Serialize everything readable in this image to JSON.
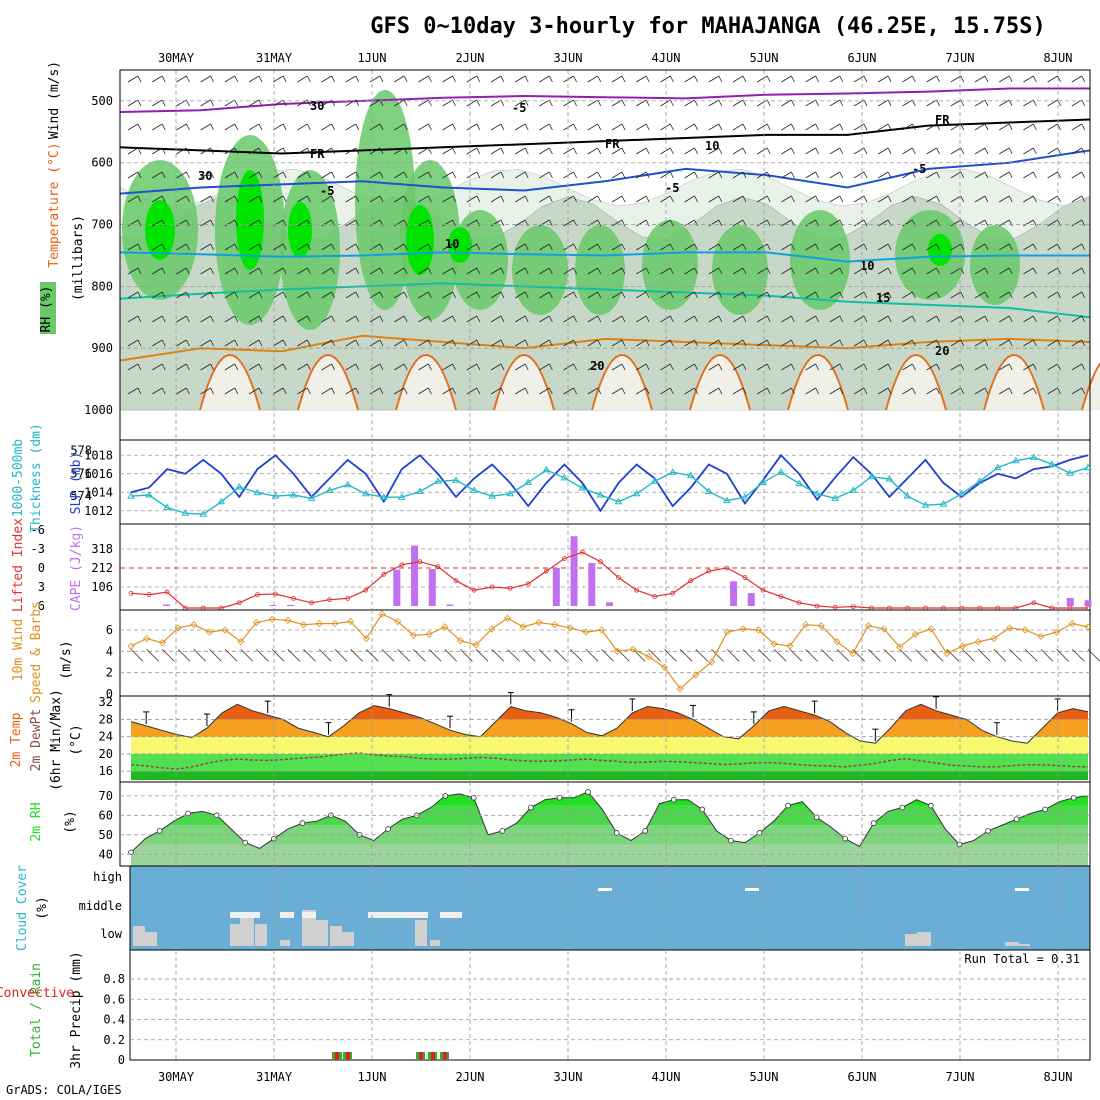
{
  "title": "GFS 0~10day 3-hourly for MAHAJANGA (46.25E, 15.75S)",
  "footer": "GrADS: COLA/IGES",
  "colors": {
    "grid": "#9a9a9a",
    "rh_light": "#e8f2e8",
    "rh_mid": "#c8d8c8",
    "rh_dark": "#67c967",
    "rh_bright": "#00e400",
    "slp": "#1f3fd0",
    "thickness": "#22b8c8",
    "lifted": "#e03030",
    "cape": "#c070f0",
    "wind": "#e09020",
    "temp_hot": "#e86010",
    "temp_orange": "#f5a020",
    "temp_yellow": "#f8f870",
    "temp_green": "#50e050",
    "temp_dkgreen": "#20b820",
    "rh2m": "#20e020",
    "cloud_bg": "#6aaed6",
    "cloud_gray": "#d0d0d0",
    "precip_green": "#30b030",
    "precip_red": "#e02020"
  },
  "chart_data": {
    "type": "meteogram",
    "x_dates": [
      "30MAY",
      "31MAY",
      "1JUN",
      "2JUN",
      "3JUN",
      "4JUN",
      "5JUN",
      "6JUN",
      "7JUN",
      "8JUN"
    ],
    "panels": [
      {
        "name": "upper-air",
        "ylabel": [
          "Wind (m/s)",
          "Temperature (°C)",
          "RH (%)",
          "(millibars)"
        ],
        "yticks": [
          "500",
          "600",
          "700",
          "800",
          "900",
          "1000"
        ],
        "ylim": [
          1000,
          450
        ],
        "contour_labels": [
          "-5",
          "FR",
          "FR",
          "FR",
          "-5",
          "-5",
          "-5",
          "10",
          "10",
          "15",
          "20",
          "20",
          "30",
          "30",
          "10"
        ],
        "isotherms": [
          {
            "label": "-5",
            "color": "#9020b0",
            "values": [
              518,
              515,
              505,
              500,
              495,
              492,
              494,
              496,
              490,
              488,
              485,
              480,
              480
            ]
          },
          {
            "label": "FR",
            "color": "#000000",
            "values": [
              575,
              580,
              585,
              580,
              575,
              570,
              565,
              560,
              555,
              555,
              540,
              535,
              530
            ]
          },
          {
            "label": "5",
            "color": "#2050d0",
            "values": [
              650,
              640,
              635,
              630,
              640,
              645,
              630,
              610,
              620,
              640,
              610,
              600,
              580
            ]
          },
          {
            "label": "10",
            "color": "#10a0e0",
            "values": [
              745,
              748,
              752,
              750,
              745,
              748,
              750,
              745,
              745,
              760,
              752,
              750,
              750
            ]
          },
          {
            "label": "15",
            "color": "#10c0a0",
            "values": [
              820,
              812,
              805,
              800,
              795,
              800,
              805,
              810,
              815,
              825,
              830,
              835,
              850
            ]
          },
          {
            "label": "20",
            "color": "#e08010",
            "values": [
              920,
              900,
              905,
              880,
              890,
              900,
              885,
              890,
              895,
              900,
              890,
              885,
              890
            ]
          }
        ]
      },
      {
        "name": "slp-thickness",
        "ylabel": [
          "1000-500mb",
          "Thickness (dm)",
          "SLP (mb)"
        ],
        "left_ticks": [
          "578",
          "576",
          "574"
        ],
        "right_ticks": [
          "1018",
          "1016",
          "1014",
          "1012"
        ],
        "slp": [
          1014,
          1014.5,
          1016.5,
          1016,
          1017.5,
          1016,
          1013.5,
          1016.5,
          1018,
          1016,
          1013.5,
          1015.5,
          1017.5,
          1016,
          1013,
          1016.5,
          1018,
          1016,
          1013.5,
          1015.5,
          1017,
          1015,
          1012.5,
          1015,
          1017,
          1015,
          1012,
          1015,
          1017,
          1015.5,
          1012.5,
          1014.5,
          1017,
          1016,
          1012.8,
          1015.3,
          1018,
          1016,
          1013.2,
          1015.6,
          1017.8,
          1016,
          1013.5,
          1015.5,
          1017.5,
          1015,
          1013.5,
          1015,
          1016,
          1015.5,
          1016.5,
          1016.8,
          1017.5,
          1018
        ],
        "thickness": [
          574.0,
          574.1,
          573.0,
          572.5,
          572.4,
          573.5,
          574.8,
          574.3,
          574.0,
          574.1,
          573.8,
          574.5,
          575.0,
          574.2,
          573.9,
          573.9,
          574.4,
          575.3,
          575.4,
          574.5,
          574.0,
          574.2,
          575.2,
          576.3,
          575.6,
          574.7,
          574.1,
          573.5,
          574.2,
          575.3,
          576.1,
          575.8,
          574.4,
          573.6,
          573.9,
          575.2,
          576.1,
          575.1,
          574.2,
          573.8,
          574.5,
          575.7,
          575.5,
          574.0,
          573.2,
          573.3,
          574.2,
          575.3,
          576.5,
          577.1,
          577.4,
          576.8,
          576.0,
          576.5
        ]
      },
      {
        "name": "lifted-cape",
        "ylabel": [
          "Lifted Index",
          "CAPE (J/kg)"
        ],
        "left_ticks": [
          "-6",
          "-3",
          "0",
          "3",
          "6"
        ],
        "right_ticks": [
          "318",
          "212",
          "106"
        ],
        "lifted_index": [
          4.0,
          4.2,
          3.8,
          6.5,
          6.8,
          6.9,
          5.5,
          4.2,
          4.1,
          4.8,
          5.5,
          5.0,
          4.8,
          3.5,
          1.0,
          -0.5,
          -1.0,
          -0.2,
          2.0,
          3.5,
          3.0,
          3.2,
          2.5,
          0.5,
          -1.5,
          -2.5,
          -1.0,
          1.5,
          3.5,
          4.5,
          4.0,
          2.0,
          0.5,
          0.0,
          1.5,
          3.5,
          4.5,
          5.5,
          6.0,
          6.2,
          6.1,
          6.5,
          6.4,
          6.8,
          6.9,
          7.0,
          6.8,
          6.5,
          6.7,
          6.9,
          5.5,
          6.9,
          6.9,
          6.9
        ],
        "cape": [
          0,
          0,
          8,
          0,
          0,
          0,
          0,
          0,
          5,
          6,
          0,
          0,
          0,
          0,
          0,
          203,
          337,
          206,
          8,
          0,
          0,
          0,
          0,
          0,
          212,
          389,
          240,
          20,
          0,
          0,
          0,
          0,
          0,
          0,
          138,
          72,
          0,
          0,
          0,
          0,
          0,
          0,
          0,
          0,
          0,
          0,
          0,
          0,
          0,
          0,
          0,
          0,
          0,
          45,
          32
        ]
      },
      {
        "name": "wind",
        "ylabel": [
          "10m Wind",
          "Speed & Barbs",
          "(m/s)"
        ],
        "yticks": [
          "6",
          "4",
          "2",
          "0"
        ],
        "speed": [
          4.5,
          5.2,
          4.8,
          6.2,
          6.5,
          5.8,
          6.0,
          4.9,
          6.7,
          7.0,
          6.9,
          6.5,
          6.6,
          6.6,
          6.8,
          5.2,
          7.5,
          6.8,
          5.5,
          5.6,
          6.3,
          5.0,
          4.6,
          6.1,
          7.1,
          6.3,
          6.7,
          6.5,
          6.2,
          5.8,
          6.0,
          4.0,
          4.2,
          3.5,
          2.5,
          0.5,
          1.8,
          3.0,
          5.8,
          6.1,
          6.0,
          4.7,
          4.5,
          6.5,
          6.4,
          4.9,
          3.8,
          6.4,
          6.1,
          4.4,
          5.6,
          6.1,
          3.8,
          4.5,
          4.9,
          5.2,
          6.2,
          6.0,
          5.4,
          5.8,
          6.6,
          6.3
        ]
      },
      {
        "name": "temperature",
        "ylabel": [
          "2m Temp",
          "2m DewPt",
          "(6hr Min/Max)",
          "(°C)"
        ],
        "yticks": [
          "32",
          "28",
          "24",
          "20",
          "16"
        ],
        "temp": [
          27.5,
          26.5,
          25.5,
          24.5,
          23.8,
          26.0,
          29.5,
          31.5,
          30.0,
          29.0,
          28.0,
          26.0,
          25.0,
          24.0,
          26.5,
          29.5,
          31.2,
          30.5,
          29.5,
          28.5,
          27.0,
          25.5,
          24.5,
          24.0,
          27.5,
          31.0,
          30.0,
          29.5,
          28.5,
          27.0,
          25.0,
          24.2,
          26.0,
          29.5,
          31.0,
          30.5,
          29.5,
          28.0,
          26.0,
          24.0,
          23.5,
          26.5,
          30.0,
          31.0,
          30.0,
          29.0,
          27.5,
          25.0,
          23.0,
          22.5,
          26.0,
          30.0,
          31.5,
          30.0,
          29.0,
          28.0,
          25.5,
          24.0,
          23.0,
          22.5,
          26.0,
          29.5,
          30.5,
          29.8
        ],
        "dewpt": [
          17.5,
          17.2,
          16.8,
          16.5,
          17.0,
          17.8,
          18.5,
          18.8,
          18.6,
          18.5,
          18.7,
          19.0,
          19.2,
          19.5,
          20.0,
          20.2,
          19.8,
          19.5,
          19.4,
          19.0,
          18.8,
          18.8,
          19.0,
          19.2,
          19.0,
          18.6,
          18.4,
          18.3,
          18.4,
          18.6,
          18.8,
          18.5,
          18.3,
          18.0,
          18.1,
          18.3,
          18.2,
          18.0,
          17.8,
          17.5,
          17.7,
          17.9,
          18.0,
          17.8,
          17.5,
          17.3,
          17.2,
          17.0,
          17.4,
          17.8,
          18.5,
          18.9,
          18.4,
          17.9,
          17.4,
          17.2,
          17.0,
          17.0,
          17.3,
          17.5,
          17.5,
          17.3,
          17.1,
          17.0
        ]
      },
      {
        "name": "rh2m",
        "ylabel": [
          "2m RH",
          "(%)"
        ],
        "yticks": [
          "70",
          "60",
          "50",
          "40"
        ],
        "rh": [
          41,
          48,
          52,
          57,
          61,
          62,
          60,
          53,
          46,
          43,
          48,
          53,
          56,
          57,
          60,
          57,
          50,
          47,
          53,
          58,
          60,
          64,
          70,
          71,
          69,
          50,
          52,
          56,
          64,
          68,
          69,
          69,
          72,
          63,
          51,
          47,
          52,
          66,
          68,
          68,
          63,
          52,
          47,
          46,
          51,
          57,
          65,
          67,
          59,
          54,
          48,
          44,
          56,
          62,
          64,
          68,
          65,
          53,
          45,
          47,
          52,
          55,
          58,
          61,
          63,
          67,
          69,
          70
        ]
      },
      {
        "name": "cloud-cover",
        "ylabel": [
          "Cloud Cover",
          "(%)"
        ],
        "levels": [
          "high",
          "middle",
          "low"
        ]
      },
      {
        "name": "precip",
        "ylabel": [
          "Total / Rain",
          "Convective",
          "3hr Precip (mm)"
        ],
        "yticks": [
          "0.8",
          "0.6",
          "0.4",
          "0.2",
          "0"
        ],
        "run_total_text": "Run Total = 0.31",
        "bars_index": [
          16,
          17,
          25,
          26,
          27
        ],
        "bar_values": [
          0.02,
          0.02,
          0.02,
          0.02,
          0.02
        ]
      }
    ]
  }
}
